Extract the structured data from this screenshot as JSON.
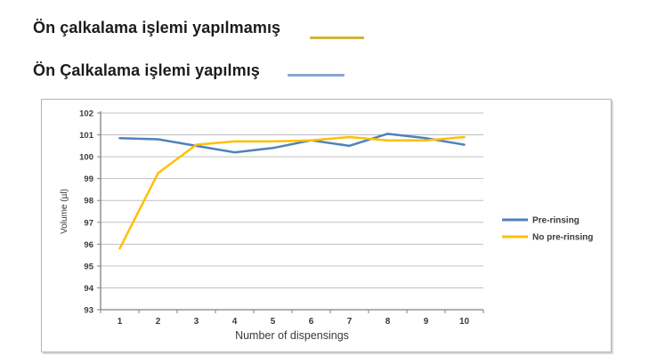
{
  "header": {
    "legend_top": [
      {
        "label": "Ön çalkalama işlemi yapılmamış",
        "color": "#cdb53c"
      },
      {
        "label": "Ön Çalkalama işlemi yapılmış",
        "color": "#8da3d4"
      }
    ]
  },
  "chart_data": {
    "type": "line",
    "categories": [
      1,
      2,
      3,
      4,
      5,
      6,
      7,
      8,
      9,
      10
    ],
    "series": [
      {
        "name": "Pre-rinsing",
        "color": "#4f81bd",
        "values": [
          100.85,
          100.8,
          100.5,
          100.2,
          100.4,
          100.75,
          100.5,
          101.05,
          100.85,
          100.55
        ]
      },
      {
        "name": "No pre-rinsing",
        "color": "#ffc000",
        "values": [
          95.8,
          99.25,
          100.55,
          100.7,
          100.7,
          100.75,
          100.9,
          100.75,
          100.75,
          100.9
        ]
      }
    ],
    "title": "",
    "xlabel": "Number of dispensings",
    "ylabel": "Volume (µl)",
    "ylim": [
      93,
      102
    ],
    "ytick_step": 1,
    "grid": true,
    "legend_position": "right",
    "colors": {
      "gridline": "#c0c0c0",
      "axis": "#808080",
      "tick_text": "#3a3a3a"
    }
  }
}
